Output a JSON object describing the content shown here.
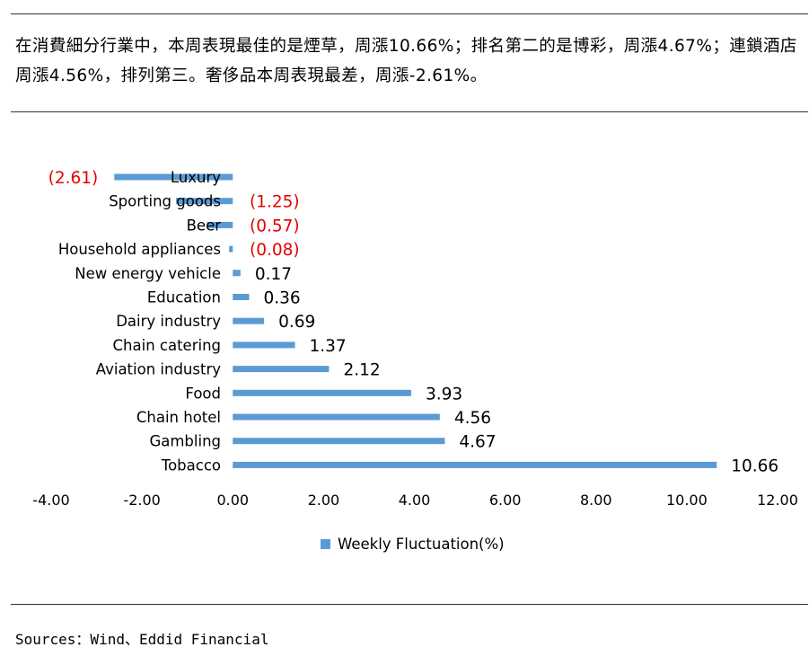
{
  "intro_text": "在消費細分行業中，本周表現最佳的是煙草，周漲10.66%；排名第二的是博彩，周漲4.67%；連鎖酒店周漲4.56%，排列第三。奢侈品本周表現最差，周漲-2.61%。",
  "source_text": "Sources：Wind、Eddid Financial",
  "colors": {
    "bar": "#5b9bd5",
    "negative_label": "#e60000",
    "positive_label": "#000000",
    "rule": "#333333"
  },
  "chart_data": {
    "type": "bar",
    "orientation": "horizontal",
    "categories": [
      "Luxury",
      "Sporting goods",
      "Beer",
      "Household appliances",
      "New energy vehicle",
      "Education",
      "Dairy industry",
      "Chain catering",
      "Aviation industry",
      "Food",
      "Chain hotel",
      "Gambling",
      "Tobacco"
    ],
    "series": [
      {
        "name": "Weekly Fluctuation(%)",
        "values": [
          -2.61,
          -1.25,
          -0.57,
          -0.08,
          0.17,
          0.36,
          0.69,
          1.37,
          2.12,
          3.93,
          4.56,
          4.67,
          10.66
        ],
        "labels": [
          "(2.61)",
          "(1.25)",
          "(0.57)",
          "(0.08)",
          "0.17",
          "0.36",
          "0.69",
          "1.37",
          "2.12",
          "3.93",
          "4.56",
          "4.67",
          "10.66"
        ]
      }
    ],
    "xlim": [
      -4,
      12
    ],
    "xticks": [
      -4,
      -2,
      0,
      2,
      4,
      6,
      8,
      10,
      12
    ],
    "xtick_labels": [
      "-4.00",
      "-2.00",
      "0.00",
      "2.00",
      "4.00",
      "6.00",
      "8.00",
      "10.00",
      "12.00"
    ],
    "grid": false,
    "legend_position": "bottom"
  }
}
